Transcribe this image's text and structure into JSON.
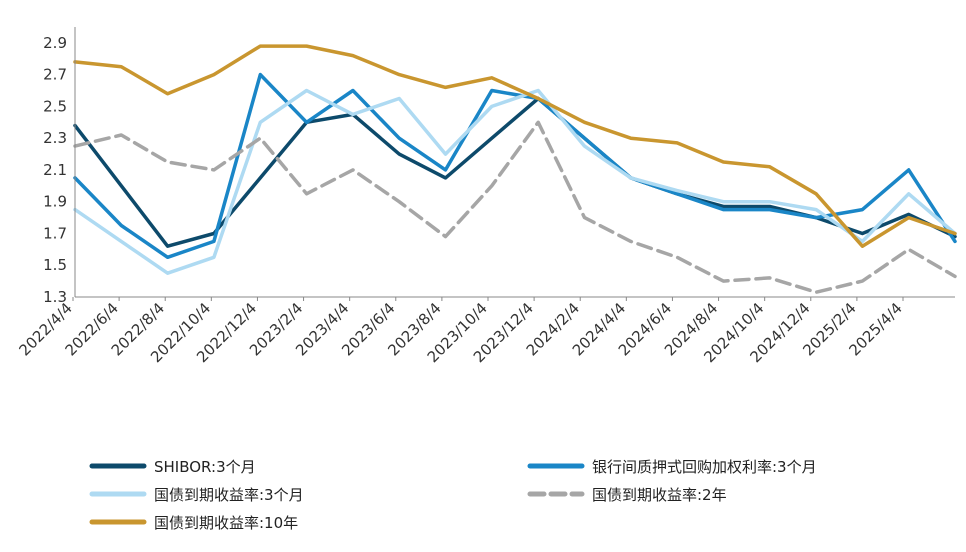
{
  "chart_data": {
    "type": "line",
    "title": "",
    "xlabel": "",
    "ylabel": "",
    "ylim": [
      1.3,
      3.0
    ],
    "yticks": [
      "1.3",
      "1.5",
      "1.7",
      "1.9",
      "2.1",
      "2.3",
      "2.5",
      "2.7",
      "2.9"
    ],
    "xticks": [
      "2022/4/4",
      "2022/6/4",
      "2022/8/4",
      "2022/10/4",
      "2022/12/4",
      "2023/2/4",
      "2023/4/4",
      "2023/6/4",
      "2023/8/4",
      "2023/10/4",
      "2023/12/4",
      "2024/2/4",
      "2024/4/4",
      "2024/6/4",
      "2024/8/4",
      "2024/10/4",
      "2024/12/4",
      "2025/2/4",
      "2025/4/4"
    ],
    "grid": false,
    "legend_position": "bottom",
    "x": [
      "2022/4/4",
      "2022/6/4",
      "2022/8/4",
      "2022/10/4",
      "2022/12/4",
      "2023/2/4",
      "2023/4/4",
      "2023/6/4",
      "2023/8/4",
      "2023/10/4",
      "2023/12/4",
      "2024/2/4",
      "2024/4/4",
      "2024/6/4",
      "2024/8/4",
      "2024/10/4",
      "2024/12/4",
      "2025/2/4",
      "2025/4/4",
      "2025/5/20"
    ],
    "series": [
      {
        "name": "SHIBOR:3个月",
        "color": "#0d4a6b",
        "style": "solid",
        "values": [
          2.38,
          2.0,
          1.62,
          1.7,
          2.05,
          2.4,
          2.45,
          2.2,
          2.05,
          2.3,
          2.55,
          2.3,
          2.05,
          1.95,
          1.87,
          1.87,
          1.8,
          1.7,
          1.82,
          1.68
        ]
      },
      {
        "name": "银行间质押式回购加权利率:3个月",
        "color": "#1a86c7",
        "style": "solid",
        "values": [
          2.05,
          1.75,
          1.55,
          1.65,
          2.7,
          2.4,
          2.6,
          2.3,
          2.1,
          2.6,
          2.55,
          2.3,
          2.05,
          1.95,
          1.85,
          1.85,
          1.8,
          1.85,
          2.1,
          1.65
        ]
      },
      {
        "name": "国债到期收益率:3个月",
        "color": "#aedaf2",
        "style": "solid",
        "values": [
          1.85,
          1.65,
          1.45,
          1.55,
          2.4,
          2.6,
          2.45,
          2.55,
          2.2,
          2.5,
          2.6,
          2.25,
          2.05,
          1.97,
          1.9,
          1.9,
          1.85,
          1.65,
          1.95,
          1.7
        ]
      },
      {
        "name": "国债到期收益率:2年",
        "color": "#a6a6a6",
        "style": "dashed",
        "values": [
          2.25,
          2.32,
          2.15,
          2.1,
          2.3,
          1.95,
          2.1,
          1.9,
          1.68,
          2.0,
          2.4,
          1.8,
          1.65,
          1.55,
          1.4,
          1.42,
          1.33,
          1.4,
          1.6,
          1.43
        ]
      },
      {
        "name": "国债到期收益率:10年",
        "color": "#c9962f",
        "style": "solid",
        "values": [
          2.78,
          2.75,
          2.58,
          2.7,
          2.88,
          2.88,
          2.82,
          2.7,
          2.62,
          2.68,
          2.55,
          2.4,
          2.3,
          2.27,
          2.15,
          2.12,
          1.95,
          1.62,
          1.8,
          1.7
        ]
      }
    ]
  }
}
